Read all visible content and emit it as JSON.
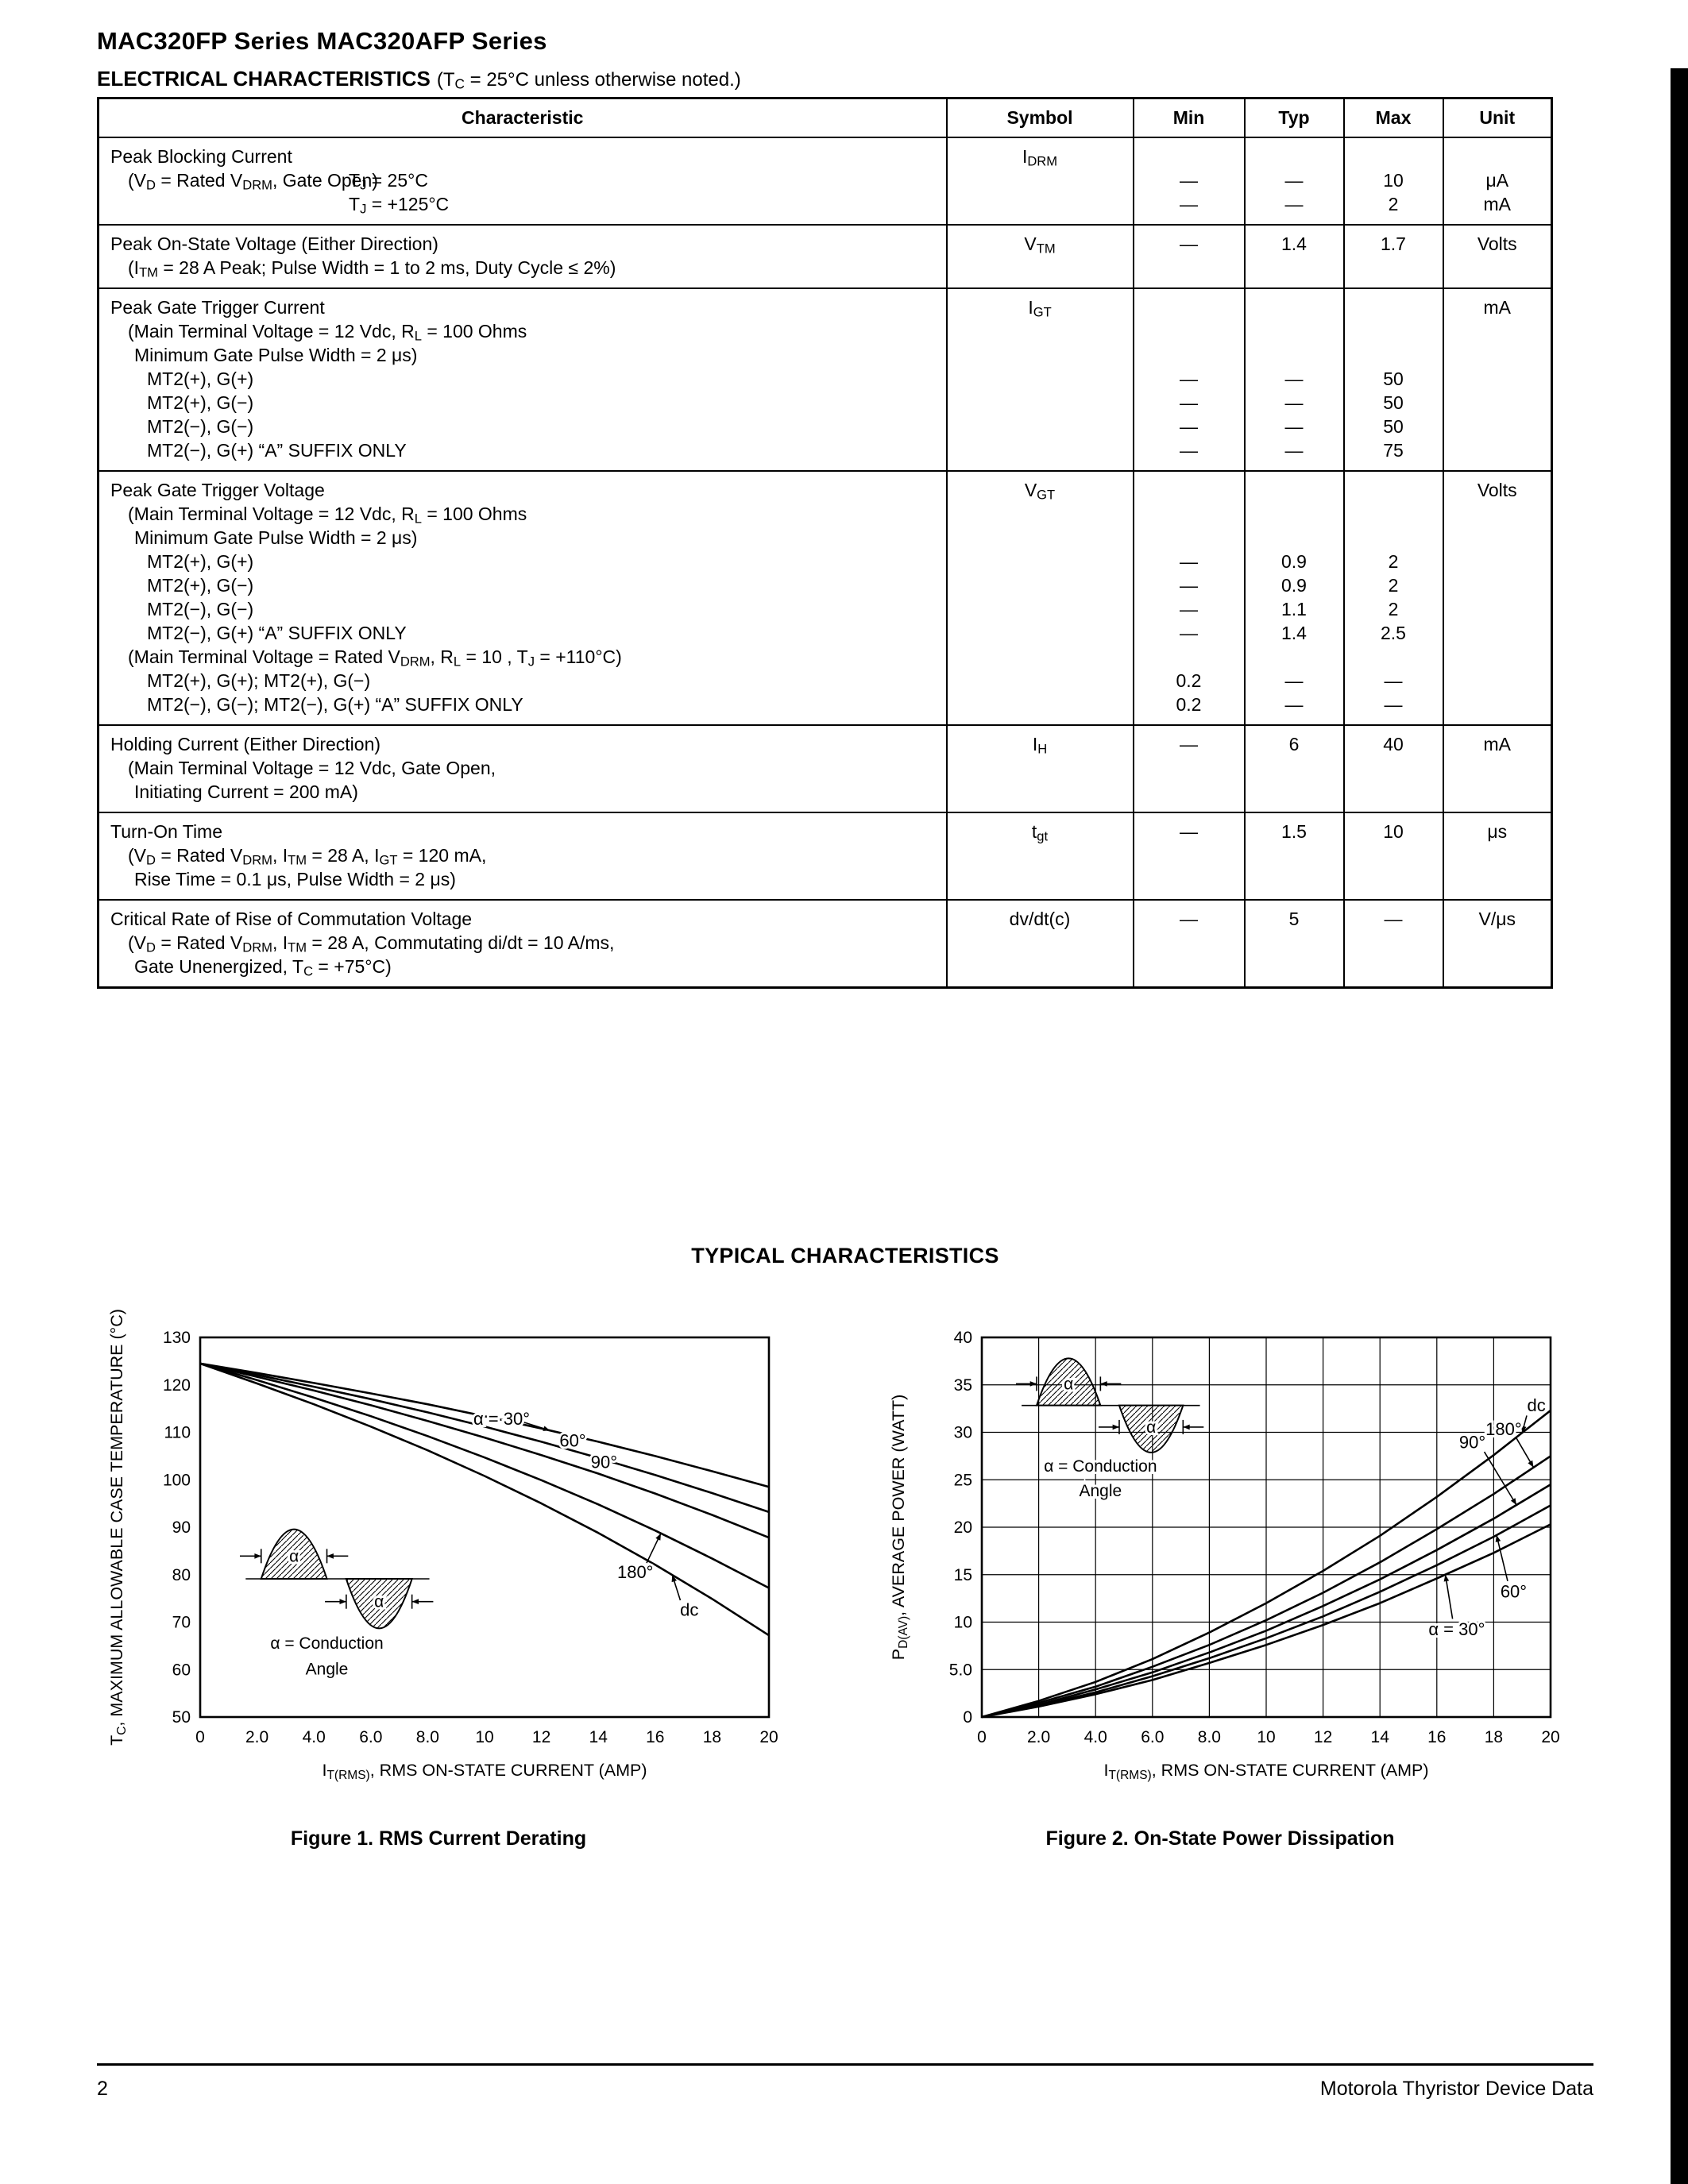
{
  "page": {
    "title": "MAC320FP Series MAC320AFP Series",
    "section_heading": "ELECTRICAL CHARACTERISTICS",
    "section_note": "(T_{C} = 25°C unless otherwise noted.)",
    "typical_heading": "TYPICAL CHARACTERISTICS",
    "footer_page_number": "2",
    "footer_text": "Motorola Thyristor Device Data"
  },
  "table": {
    "headers": [
      "Characteristic",
      "Symbol",
      "Min",
      "Typ",
      "Max",
      "Unit"
    ],
    "rows": [
      {
        "char_lines": [
          {
            "i": 0,
            "t": "Peak Blocking Current"
          },
          {
            "i": 22,
            "t": "(V_{D} = Rated V_{DRM}, Gate Open)",
            "t2": "T_{J} = 25°C",
            "i2": 300
          },
          {
            "i": 300,
            "t": "T_{J} = +125°C"
          }
        ],
        "symbol": "I_{DRM}",
        "min": [
          "",
          "—",
          "—"
        ],
        "typ": [
          "",
          "—",
          "—"
        ],
        "max": [
          "",
          "10",
          "2"
        ],
        "unit": [
          "",
          "μA",
          "mA"
        ]
      },
      {
        "char_lines": [
          {
            "i": 0,
            "t": "Peak On-State Voltage (Either Direction)"
          },
          {
            "i": 22,
            "t": "(I_{TM} = 28 A Peak; Pulse Width = 1 to 2 ms, Duty Cycle ≤ 2%)"
          }
        ],
        "symbol": "V_{TM}",
        "min": [
          "—"
        ],
        "typ": [
          "1.4"
        ],
        "max": [
          "1.7"
        ],
        "unit": [
          "Volts"
        ]
      },
      {
        "char_lines": [
          {
            "i": 0,
            "t": "Peak Gate Trigger Current"
          },
          {
            "i": 22,
            "t": "(Main Terminal Voltage = 12 Vdc, R_{L} = 100 Ohms"
          },
          {
            "i": 30,
            "t": "Minimum Gate Pulse Width = 2 μs)"
          },
          {
            "i": 46,
            "t": "MT2(+), G(+)"
          },
          {
            "i": 46,
            "t": "MT2(+), G(−)"
          },
          {
            "i": 46,
            "t": "MT2(−), G(−)"
          },
          {
            "i": 46,
            "t": "MT2(−), G(+) “A” SUFFIX ONLY"
          }
        ],
        "symbol": "I_{GT}",
        "min": [
          "",
          "",
          "",
          "—",
          "—",
          "—",
          "—"
        ],
        "typ": [
          "",
          "",
          "",
          "—",
          "—",
          "—",
          "—"
        ],
        "max": [
          "",
          "",
          "",
          "50",
          "50",
          "50",
          "75"
        ],
        "unit": [
          "mA"
        ]
      },
      {
        "char_lines": [
          {
            "i": 0,
            "t": "Peak Gate Trigger Voltage"
          },
          {
            "i": 22,
            "t": "(Main Terminal Voltage = 12 Vdc, R_{L} = 100 Ohms"
          },
          {
            "i": 30,
            "t": "Minimum Gate Pulse Width = 2 μs)"
          },
          {
            "i": 46,
            "t": "MT2(+), G(+)"
          },
          {
            "i": 46,
            "t": "MT2(+), G(−)"
          },
          {
            "i": 46,
            "t": "MT2(−), G(−)"
          },
          {
            "i": 46,
            "t": "MT2(−), G(+) “A” SUFFIX ONLY"
          },
          {
            "i": 22,
            "t": "(Main Terminal Voltage = Rated V_{DRM}, R_{L} = 10 , T_{J} = +110°C)"
          },
          {
            "i": 46,
            "t": "MT2(+), G(+); MT2(+), G(−)"
          },
          {
            "i": 46,
            "t": "MT2(−), G(−); MT2(−), G(+) “A” SUFFIX ONLY"
          }
        ],
        "symbol": "V_{GT}",
        "min": [
          "",
          "",
          "",
          "—",
          "—",
          "—",
          "—",
          "",
          "0.2",
          "0.2"
        ],
        "typ": [
          "",
          "",
          "",
          "0.9",
          "0.9",
          "1.1",
          "1.4",
          "",
          "—",
          "—"
        ],
        "max": [
          "",
          "",
          "",
          "2",
          "2",
          "2",
          "2.5",
          "",
          "—",
          "—"
        ],
        "unit": [
          "Volts"
        ]
      },
      {
        "char_lines": [
          {
            "i": 0,
            "t": "Holding Current (Either Direction)"
          },
          {
            "i": 22,
            "t": "(Main Terminal Voltage = 12 Vdc, Gate Open,"
          },
          {
            "i": 30,
            "t": "Initiating Current = 200 mA)"
          }
        ],
        "symbol": "I_{H}",
        "min": [
          "—"
        ],
        "typ": [
          "6"
        ],
        "max": [
          "40"
        ],
        "unit": [
          "mA"
        ]
      },
      {
        "char_lines": [
          {
            "i": 0,
            "t": "Turn-On Time"
          },
          {
            "i": 22,
            "t": "(V_{D} = Rated V_{DRM}, I_{TM} = 28 A, I_{GT} = 120 mA,"
          },
          {
            "i": 30,
            "t": "Rise Time = 0.1 μs, Pulse Width = 2 μs)"
          }
        ],
        "symbol": "t_{gt}",
        "min": [
          "—"
        ],
        "typ": [
          "1.5"
        ],
        "max": [
          "10"
        ],
        "unit": [
          "μs"
        ]
      },
      {
        "char_lines": [
          {
            "i": 0,
            "t": "Critical Rate of Rise of Commutation Voltage"
          },
          {
            "i": 22,
            "t": "(V_{D} = Rated V_{DRM}, I_{TM} = 28 A, Commutating di/dt = 10 A/ms,"
          },
          {
            "i": 30,
            "t": "Gate Unenergized, T_{C} = +75°C)"
          }
        ],
        "symbol": "dv/dt(c)",
        "min": [
          "—"
        ],
        "typ": [
          "5"
        ],
        "max": [
          "—"
        ],
        "unit": [
          "V/μs"
        ]
      }
    ]
  },
  "chart_data": [
    {
      "type": "line",
      "title": "Figure 1. RMS Current Derating",
      "xlabel": "I_{T(RMS)}, RMS ON-STATE CURRENT (AMP)",
      "ylabel": "T_{C}, MAXIMUM ALLOWABLE CASE TEMPERATURE (°C)",
      "xlim": [
        0,
        20
      ],
      "ylim": [
        50,
        130
      ],
      "xticks": [
        "0",
        "2.0",
        "4.0",
        "6.0",
        "8.0",
        "10",
        "12",
        "14",
        "16",
        "18",
        "20"
      ],
      "yticks": [
        "50",
        "60",
        "70",
        "80",
        "90",
        "100",
        "110",
        "120",
        "130"
      ],
      "grid": false,
      "legend_position": "on-curve",
      "x": [
        0,
        2,
        4,
        6,
        8,
        10,
        12,
        14,
        16,
        18,
        20
      ],
      "series": [
        {
          "name": "α = 30°",
          "values": [
            124.5,
            122.5,
            120.4,
            118.2,
            115.9,
            113.4,
            110.8,
            108,
            105,
            101.8,
            98.5
          ]
        },
        {
          "name": "60°",
          "values": [
            124.5,
            122.1,
            119.6,
            117,
            114.2,
            111.2,
            108,
            104.6,
            101,
            97.2,
            93.2
          ]
        },
        {
          "name": "90°",
          "values": [
            124.5,
            121.7,
            118.8,
            115.7,
            112.4,
            108.9,
            105.2,
            101.3,
            97.1,
            92.6,
            87.8
          ]
        },
        {
          "name": "180°",
          "values": [
            124.5,
            121,
            117.3,
            113.4,
            109.2,
            104.7,
            99.9,
            94.8,
            89.3,
            83.4,
            77.2
          ]
        },
        {
          "name": "dc",
          "values": [
            124.5,
            120.3,
            115.9,
            111.2,
            106.2,
            100.8,
            95,
            88.8,
            82.1,
            74.9,
            67.2
          ]
        }
      ],
      "labels": [
        {
          "t": "α = 30°",
          "x": 10.6,
          "y": 112.8,
          "si": 0,
          "px": 12.3
        },
        {
          "t": "60°",
          "x": 13.1,
          "y": 108.2,
          "si": 1,
          "px": 13.7
        },
        {
          "t": "90°",
          "x": 14.2,
          "y": 103.6,
          "si": 2,
          "px": 14.8
        },
        {
          "t": "180°",
          "x": 15.3,
          "y": 80.5,
          "si": 3,
          "px": 16.2
        },
        {
          "t": "dc",
          "x": 17.2,
          "y": 72.5,
          "si": 4,
          "px": 16.6
        }
      ],
      "inset": {
        "x": 0.08,
        "y": 0.5,
        "w": 0.34,
        "h": 0.4,
        "caption": [
          "α =  Conduction",
          "Angle"
        ]
      }
    },
    {
      "type": "line",
      "title": "Figure 2. On-State Power Dissipation",
      "xlabel": "I_{T(RMS)}, RMS ON-STATE CURRENT (AMP)",
      "ylabel": "P_{D(AV)}, AVERAGE POWER (WATT)",
      "xlim": [
        0,
        20
      ],
      "ylim": [
        0,
        40
      ],
      "xticks": [
        "0",
        "2.0",
        "4.0",
        "6.0",
        "8.0",
        "10",
        "12",
        "14",
        "16",
        "18",
        "20"
      ],
      "yticks": [
        "0",
        "5.0",
        "10",
        "15",
        "20",
        "25",
        "30",
        "35",
        "40"
      ],
      "grid": true,
      "legend_position": "on-curve",
      "x": [
        0,
        2,
        4,
        6,
        8,
        10,
        12,
        14,
        16,
        18,
        20
      ],
      "series": [
        {
          "name": "dc",
          "values": [
            0,
            1.7,
            3.7,
            6.1,
            8.9,
            12,
            15.4,
            19.1,
            23.2,
            27.6,
            32.3
          ]
        },
        {
          "name": "180°",
          "values": [
            0,
            1.5,
            3.2,
            5.3,
            7.6,
            10.2,
            13.1,
            16.3,
            19.8,
            23.5,
            27.5
          ]
        },
        {
          "name": "90°",
          "values": [
            0,
            1.3,
            2.9,
            4.7,
            6.8,
            9.1,
            11.7,
            14.5,
            17.6,
            20.9,
            24.5
          ]
        },
        {
          "name": "60°",
          "values": [
            0,
            1.2,
            2.6,
            4.3,
            6.2,
            8.3,
            10.6,
            13.2,
            16,
            19,
            22.3
          ]
        },
        {
          "name": "α = 30°",
          "values": [
            0,
            1.1,
            2.4,
            3.9,
            5.7,
            7.6,
            9.7,
            12,
            14.6,
            17.3,
            20.3
          ]
        }
      ],
      "labels": [
        {
          "t": "dc",
          "x": 19.5,
          "y": 32.8,
          "si": 0,
          "px": 19
        },
        {
          "t": "180°",
          "x": 18.35,
          "y": 30.3,
          "si": 1,
          "px": 19.4
        },
        {
          "t": "90°",
          "x": 17.25,
          "y": 28.9,
          "si": 2,
          "px": 18.8
        },
        {
          "t": "60°",
          "x": 18.7,
          "y": 13.2,
          "si": 3,
          "px": 18.1
        },
        {
          "t": "α = 30°",
          "x": 16.7,
          "y": 9.2,
          "si": 4,
          "px": 16.3
        }
      ],
      "inset": {
        "x": 0.07,
        "y": 0.05,
        "w": 0.33,
        "h": 0.38,
        "caption": [
          "α =  Conduction",
          "Angle"
        ]
      }
    }
  ]
}
